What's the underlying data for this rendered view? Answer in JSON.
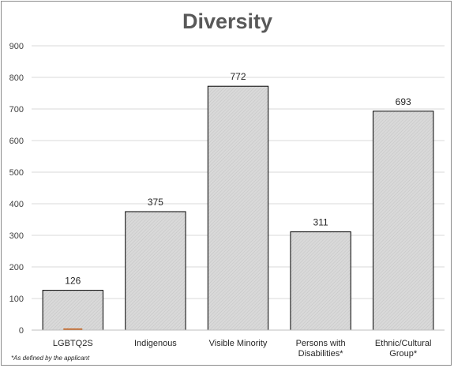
{
  "chart_data": {
    "type": "bar",
    "title": "Diversity",
    "categories": [
      [
        "LGBTQ2S"
      ],
      [
        "Indigenous"
      ],
      [
        "Visible Minority"
      ],
      [
        "Persons with",
        "Disabilities*"
      ],
      [
        "Ethnic/Cultural",
        "Group*"
      ]
    ],
    "values": [
      126,
      375,
      772,
      311,
      693
    ],
    "ylim": [
      0,
      900
    ],
    "yticks": [
      0,
      100,
      200,
      300,
      400,
      500,
      600,
      700,
      800,
      900
    ],
    "grid": true,
    "legend": "none",
    "bar_color": "#d9d9d9",
    "bar_edge_color": "#000000",
    "accent_color": "#c55a11"
  },
  "footnote": "*As defined by the applicant"
}
